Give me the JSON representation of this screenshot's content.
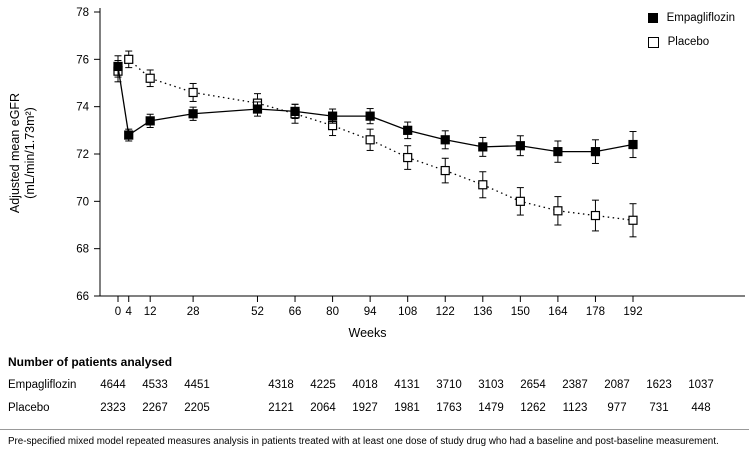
{
  "legend": {
    "series1": "Empagliflozin",
    "series2": "Placebo"
  },
  "axes": {
    "y_label_line1": "Adjusted mean eGFR",
    "y_label_line2": "(mL/min/1.73m²)",
    "x_label": "Weeks"
  },
  "colors": {
    "foreground": "#000000",
    "background": "#ffffff"
  },
  "chart_data": {
    "type": "line",
    "title": "",
    "xlabel": "Weeks",
    "ylabel": "Adjusted mean eGFR (mL/min/1.73m²)",
    "ylim": [
      66,
      78
    ],
    "yticks": [
      66,
      68,
      70,
      72,
      74,
      76,
      78
    ],
    "x": [
      0,
      4,
      12,
      28,
      52,
      66,
      80,
      94,
      108,
      122,
      136,
      150,
      164,
      178,
      192
    ],
    "grid": false,
    "legend_position": "top-right",
    "series": [
      {
        "name": "Empagliflozin",
        "marker": "filled-square",
        "line": "solid",
        "values": [
          75.7,
          72.8,
          73.4,
          73.7,
          73.9,
          73.8,
          73.6,
          73.6,
          73.0,
          72.6,
          72.3,
          72.35,
          72.1,
          72.1,
          72.4
        ],
        "errors": [
          0.45,
          0.25,
          0.28,
          0.28,
          0.3,
          0.3,
          0.3,
          0.32,
          0.35,
          0.38,
          0.4,
          0.42,
          0.45,
          0.5,
          0.55
        ]
      },
      {
        "name": "Placebo",
        "marker": "open-square",
        "line": "dotted",
        "values": [
          75.5,
          76.0,
          75.2,
          74.6,
          74.15,
          73.7,
          73.2,
          72.6,
          71.85,
          71.3,
          70.7,
          70.0,
          69.6,
          69.4,
          69.2
        ],
        "errors": [
          0.45,
          0.35,
          0.35,
          0.38,
          0.4,
          0.4,
          0.42,
          0.45,
          0.5,
          0.52,
          0.55,
          0.58,
          0.6,
          0.65,
          0.7
        ]
      }
    ]
  },
  "patients_table": {
    "heading": "Number of patients analysed",
    "rows": [
      {
        "label": "Empagliflozin",
        "values": [
          "4644",
          "4533",
          "4451",
          "",
          "4318",
          "4225",
          "4018",
          "4131",
          "3710",
          "3103",
          "2654",
          "2387",
          "2087",
          "1623",
          "1037"
        ]
      },
      {
        "label": "Placebo",
        "values": [
          "2323",
          "2267",
          "2205",
          "",
          "2121",
          "2064",
          "1927",
          "1981",
          "1763",
          "1479",
          "1262",
          "1123",
          "977",
          "731",
          "448"
        ]
      }
    ]
  },
  "footnote": "Pre-specified mixed model repeated measures analysis in patients treated with at least one dose of study drug who had a baseline and post-baseline measurement."
}
